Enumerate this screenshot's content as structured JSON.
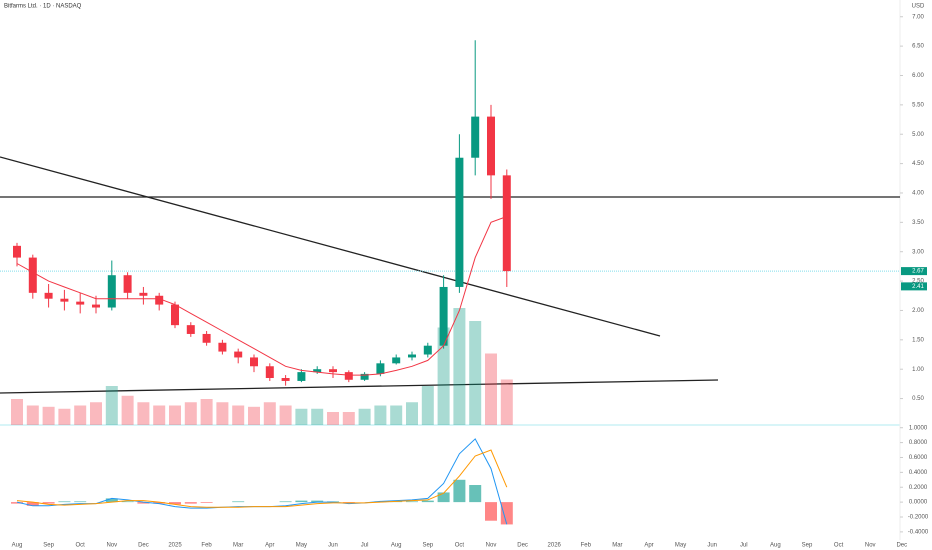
{
  "chart_data": {
    "type": "candlestick",
    "title": "Bitfarms Ltd. · 1D · NASDAQ",
    "currency": "USD",
    "categories": [
      "Aug",
      null,
      "Sep",
      null,
      "Oct",
      null,
      "Nov",
      null,
      "Dec",
      null,
      "2025",
      null,
      "Feb",
      null,
      "Mar",
      null,
      "Apr",
      null,
      "May",
      null,
      "Jun",
      null,
      "Jul",
      null,
      "Aug",
      null,
      "Sep",
      null,
      "Oct",
      null,
      "Nov",
      null,
      "Dec",
      null,
      "2026",
      null,
      "Feb",
      null,
      "Mar",
      null,
      "Apr",
      null,
      "May",
      null,
      "Jun",
      null,
      "Jul",
      null,
      "Aug",
      null,
      "Sep",
      null,
      "Oct",
      null,
      "Nov",
      null,
      "Dec",
      null
    ],
    "up_color": "#089981",
    "down_color": "#f23645",
    "open": [
      3.1,
      2.9,
      2.3,
      2.2,
      2.15,
      2.1,
      2.05,
      2.6,
      2.3,
      2.25,
      2.1,
      1.75,
      1.6,
      1.45,
      1.3,
      1.2,
      1.05,
      0.85,
      0.8,
      0.95,
      1.0,
      0.95,
      0.82,
      0.92,
      1.1,
      1.2,
      1.25,
      1.4,
      2.4,
      4.6,
      5.3,
      4.3,
      null,
      null,
      null,
      null,
      null,
      null,
      null,
      null,
      null,
      null,
      null,
      null,
      null,
      null,
      null,
      null,
      null,
      null,
      null,
      null,
      null,
      null,
      null,
      null,
      null,
      null
    ],
    "high": [
      3.15,
      2.95,
      2.45,
      2.35,
      2.3,
      2.25,
      2.85,
      2.65,
      2.4,
      2.3,
      2.15,
      1.8,
      1.65,
      1.5,
      1.35,
      1.25,
      1.1,
      0.9,
      1.0,
      1.05,
      1.05,
      0.98,
      0.95,
      1.15,
      1.25,
      1.3,
      1.45,
      2.6,
      5.0,
      6.6,
      5.5,
      4.4,
      null,
      null,
      null,
      null,
      null,
      null,
      null,
      null,
      null,
      null,
      null,
      null,
      null,
      null,
      null,
      null,
      null,
      null,
      null,
      null,
      null,
      null,
      null,
      null,
      null,
      null
    ],
    "low": [
      2.75,
      2.2,
      2.05,
      2.0,
      1.95,
      1.95,
      2.0,
      2.2,
      2.1,
      2.0,
      1.7,
      1.55,
      1.4,
      1.25,
      1.1,
      0.95,
      0.8,
      0.72,
      0.78,
      0.92,
      0.85,
      0.78,
      0.8,
      0.88,
      1.08,
      1.15,
      1.2,
      1.35,
      2.3,
      4.3,
      3.9,
      2.4,
      null,
      null,
      null,
      null,
      null,
      null,
      null,
      null,
      null,
      null,
      null,
      null,
      null,
      null,
      null,
      null,
      null,
      null,
      null,
      null,
      null,
      null,
      null,
      null,
      null,
      null
    ],
    "close": [
      2.9,
      2.3,
      2.2,
      2.15,
      2.1,
      2.05,
      2.6,
      2.3,
      2.25,
      2.1,
      1.75,
      1.6,
      1.45,
      1.3,
      1.2,
      1.05,
      0.85,
      0.8,
      0.95,
      1.0,
      0.95,
      0.82,
      0.92,
      1.1,
      1.2,
      1.25,
      1.4,
      2.4,
      4.6,
      5.3,
      4.3,
      2.67,
      null,
      null,
      null,
      null,
      null,
      null,
      null,
      null,
      null,
      null,
      null,
      null,
      null,
      null,
      null,
      null,
      null,
      null,
      null,
      null,
      null,
      null,
      null,
      null,
      null,
      null
    ],
    "moving_average": {
      "color": "#f23645",
      "values": [
        2.8,
        2.65,
        2.5,
        2.4,
        2.3,
        2.2,
        2.2,
        2.2,
        2.2,
        2.2,
        2.1,
        1.95,
        1.8,
        1.65,
        1.5,
        1.35,
        1.2,
        1.05,
        0.98,
        0.95,
        0.92,
        0.9,
        0.9,
        0.92,
        0.98,
        1.05,
        1.15,
        1.4,
        2.0,
        2.9,
        3.5,
        3.6,
        null,
        null,
        null,
        null,
        null,
        null,
        null,
        null,
        null,
        null,
        null,
        null,
        null,
        null,
        null,
        null,
        null,
        null,
        null,
        null,
        null,
        null,
        null,
        null,
        null,
        null
      ]
    },
    "volume": {
      "ylim": [
        0,
        200
      ],
      "values": [
        40,
        30,
        28,
        25,
        30,
        35,
        60,
        45,
        35,
        30,
        30,
        35,
        40,
        35,
        30,
        28,
        35,
        30,
        25,
        25,
        20,
        20,
        25,
        30,
        30,
        35,
        60,
        150,
        180,
        160,
        110,
        70,
        null,
        null,
        null,
        null,
        null,
        null,
        null,
        null,
        null,
        null,
        null,
        null,
        null,
        null,
        null,
        null,
        null,
        null,
        null,
        null,
        null,
        null,
        null,
        null,
        null,
        null
      ]
    },
    "ylim": [
      0.05,
      7.2
    ],
    "yticks": [
      {
        "value": 0.5,
        "label": "0.50"
      },
      {
        "value": 1,
        "label": "1.00"
      },
      {
        "value": 1.5,
        "label": "1.50"
      },
      {
        "value": 2,
        "label": "2.00"
      },
      {
        "value": 2.5,
        "label": "2.50"
      },
      {
        "value": 3,
        "label": "3.00"
      },
      {
        "value": 3.5,
        "label": "3.50"
      },
      {
        "value": 4,
        "label": "4.00"
      },
      {
        "value": 4.5,
        "label": "4.50"
      },
      {
        "value": 5,
        "label": "5.00"
      },
      {
        "value": 5.5,
        "label": "5.50"
      },
      {
        "value": 6,
        "label": "6.00"
      },
      {
        "value": 6.5,
        "label": "6.50"
      },
      {
        "value": 7,
        "label": "7.00"
      }
    ],
    "price_tags": [
      {
        "value": 2.67,
        "color": "#089981"
      },
      {
        "value": 2.41,
        "color": "#089981"
      }
    ],
    "macd": {
      "ylim": [
        -0.45,
        1.05
      ],
      "yticks": [
        {
          "value": 1,
          "label": "1.0000"
        },
        {
          "value": 0.8,
          "label": "0.8000"
        },
        {
          "value": 0.6,
          "label": "0.6000"
        },
        {
          "value": 0.4,
          "label": "0.4000"
        },
        {
          "value": 0.2,
          "label": "0.2000"
        },
        {
          "value": 0,
          "label": "0.0000"
        },
        {
          "value": -0.2,
          "label": "-0.2000"
        },
        {
          "value": -0.4,
          "label": "-0.4000"
        }
      ],
      "histogram": {
        "color": "#26a69a",
        "negative_color": "#ff5252",
        "values": [
          -0.02,
          -0.05,
          -0.02,
          0.01,
          0.01,
          0.0,
          0.05,
          0.01,
          -0.02,
          -0.02,
          -0.03,
          -0.02,
          -0.01,
          0.0,
          0.01,
          0.0,
          0.0,
          0.01,
          0.02,
          0.02,
          0.01,
          -0.01,
          0.0,
          0.01,
          0.01,
          0.01,
          0.02,
          0.13,
          0.3,
          0.23,
          -0.25,
          -0.3,
          null,
          null,
          null,
          null,
          null,
          null,
          null,
          null,
          null,
          null,
          null,
          null,
          null,
          null,
          null,
          null,
          null,
          null,
          null,
          null,
          null,
          null,
          null,
          null,
          null,
          null
        ]
      },
      "series": [
        {
          "color": "#2196f3",
          "values": [
            0.0,
            -0.05,
            -0.05,
            -0.03,
            -0.02,
            -0.02,
            0.05,
            0.03,
            0.0,
            -0.02,
            -0.06,
            -0.08,
            -0.08,
            -0.07,
            -0.06,
            -0.06,
            -0.06,
            -0.05,
            -0.02,
            0.0,
            0.0,
            -0.02,
            -0.01,
            0.01,
            0.02,
            0.03,
            0.05,
            0.25,
            0.65,
            0.85,
            0.45,
            -0.3,
            null,
            null,
            null,
            null,
            null,
            null,
            null,
            null,
            null,
            null,
            null,
            null,
            null,
            null,
            null,
            null,
            null,
            null,
            null,
            null,
            null,
            null,
            null,
            null,
            null,
            null
          ]
        },
        {
          "color": "#ff9800",
          "values": [
            0.02,
            0.0,
            -0.03,
            -0.04,
            -0.03,
            -0.02,
            0.0,
            0.02,
            0.02,
            0.0,
            -0.03,
            -0.06,
            -0.07,
            -0.07,
            -0.07,
            -0.06,
            -0.06,
            -0.06,
            -0.04,
            -0.02,
            -0.01,
            -0.01,
            -0.01,
            0.0,
            0.01,
            0.02,
            0.03,
            0.12,
            0.35,
            0.62,
            0.7,
            0.2,
            null,
            null,
            null,
            null,
            null,
            null,
            null,
            null,
            null,
            null,
            null,
            null,
            null,
            null,
            null,
            null,
            null,
            null,
            null,
            null,
            null,
            null,
            null,
            null,
            null,
            null
          ]
        }
      ]
    }
  }
}
